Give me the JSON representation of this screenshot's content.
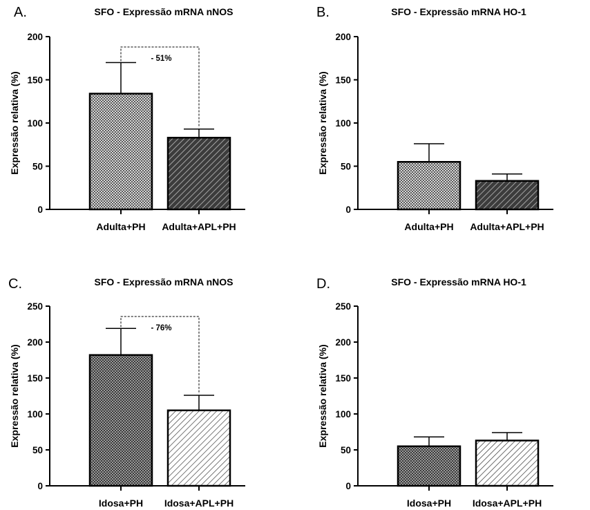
{
  "chart_data": [
    {
      "type": "bar",
      "panel_letter": "A.",
      "title": "SFO - Expressão mRNA nNOS",
      "ylabel": "Expressão relativa (%)",
      "xlabel": "",
      "categories": [
        "Adulta+PH",
        "Adulta+APL+PH"
      ],
      "values": [
        134,
        83
      ],
      "errors": [
        36,
        10
      ],
      "ylim": [
        0,
        200
      ],
      "yticks": [
        "0",
        "50",
        "100",
        "150",
        "200"
      ],
      "bar_patterns": [
        "checker-light",
        "diagonal-dark"
      ],
      "annotation": "- 51%"
    },
    {
      "type": "bar",
      "panel_letter": "B.",
      "title": "SFO - Expressão mRNA HO-1",
      "ylabel": "Expressão relativa (%)",
      "xlabel": "",
      "categories": [
        "Adulta+PH",
        "Adulta+APL+PH"
      ],
      "values": [
        55,
        33
      ],
      "errors": [
        21,
        8
      ],
      "ylim": [
        0,
        200
      ],
      "yticks": [
        "0",
        "50",
        "100",
        "150",
        "200"
      ],
      "bar_patterns": [
        "checker-light",
        "diagonal-dark"
      ],
      "annotation": ""
    },
    {
      "type": "bar",
      "panel_letter": "C.",
      "title": "SFO - Expressão mRNA nNOS",
      "ylabel": "Expressão relativa (%)",
      "xlabel": "",
      "categories": [
        "Idosa+PH",
        "Idosa+APL+PH"
      ],
      "values": [
        182,
        105
      ],
      "errors": [
        37,
        21
      ],
      "ylim": [
        0,
        250
      ],
      "yticks": [
        "0",
        "50",
        "100",
        "150",
        "200",
        "250"
      ],
      "bar_patterns": [
        "checker-dark",
        "diagonal-light"
      ],
      "annotation": "- 76%"
    },
    {
      "type": "bar",
      "panel_letter": "D.",
      "title": "SFO - Expressão mRNA HO-1",
      "ylabel": "Expressão relativa (%)",
      "xlabel": "",
      "categories": [
        "Idosa+PH",
        "Idosa+APL+PH"
      ],
      "values": [
        55,
        63
      ],
      "errors": [
        13,
        11
      ],
      "ylim": [
        0,
        250
      ],
      "yticks": [
        "0",
        "50",
        "100",
        "150",
        "200",
        "250"
      ],
      "bar_patterns": [
        "checker-dark",
        "diagonal-light"
      ],
      "annotation": ""
    }
  ]
}
